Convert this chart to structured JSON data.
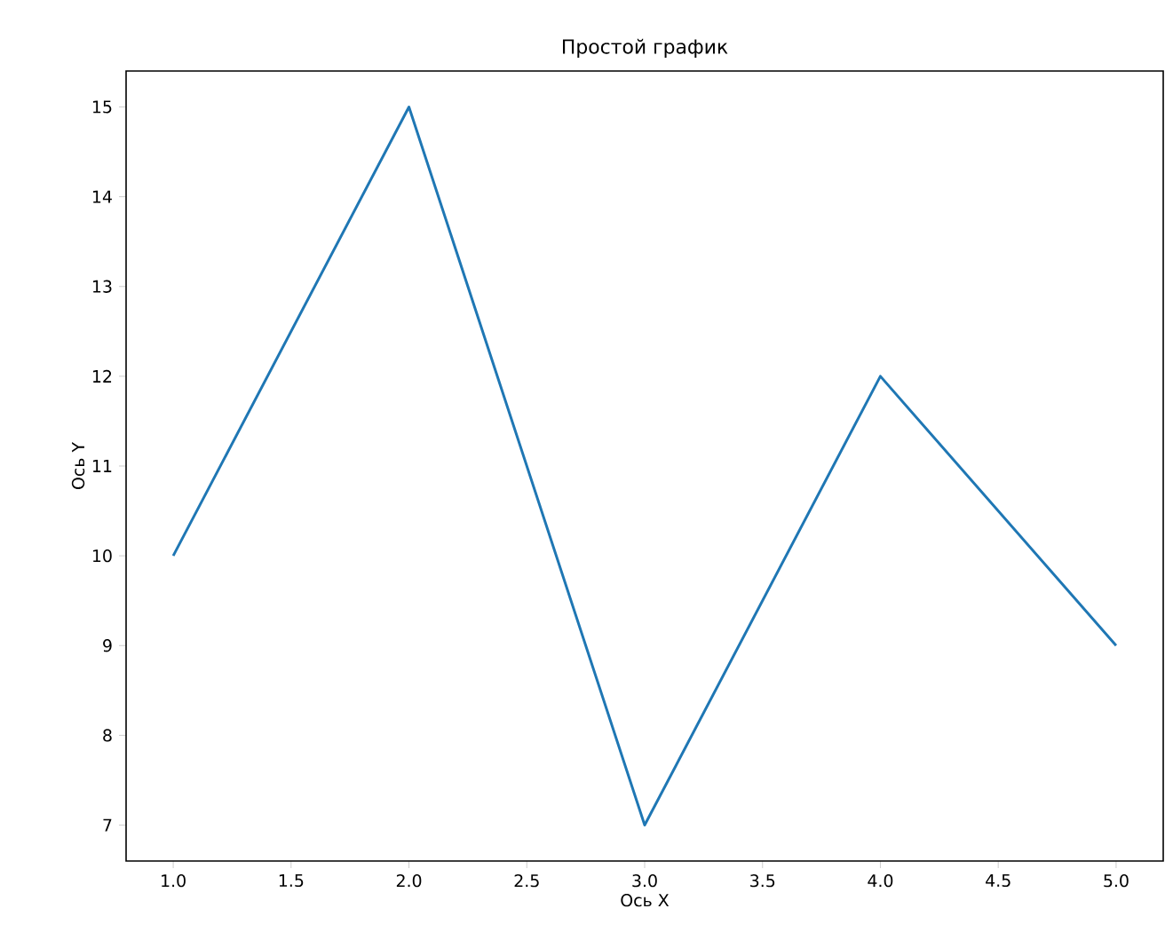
{
  "chart_data": {
    "type": "line",
    "title": "Простой график",
    "xlabel": "Ось X",
    "ylabel": "Ось Y",
    "x": [
      1,
      2,
      3,
      4,
      5
    ],
    "series": [
      {
        "color": "#1f77b4",
        "values": [
          10,
          15,
          7,
          12,
          9
        ]
      }
    ],
    "xlim": [
      0.8,
      5.2
    ],
    "ylim": [
      6.6,
      15.4
    ],
    "xticks": [
      {
        "value": 1,
        "label": "1.0"
      },
      {
        "value": 1.5,
        "label": "1.5"
      },
      {
        "value": 2,
        "label": "2.0"
      },
      {
        "value": 2.5,
        "label": "2.5"
      },
      {
        "value": 3,
        "label": "3.0"
      },
      {
        "value": 3.5,
        "label": "3.5"
      },
      {
        "value": 4,
        "label": "4.0"
      },
      {
        "value": 4.5,
        "label": "4.5"
      },
      {
        "value": 5,
        "label": "5.0"
      }
    ],
    "yticks": [
      7,
      8,
      9,
      10,
      11,
      12,
      13,
      14,
      15
    ],
    "grid": false
  }
}
